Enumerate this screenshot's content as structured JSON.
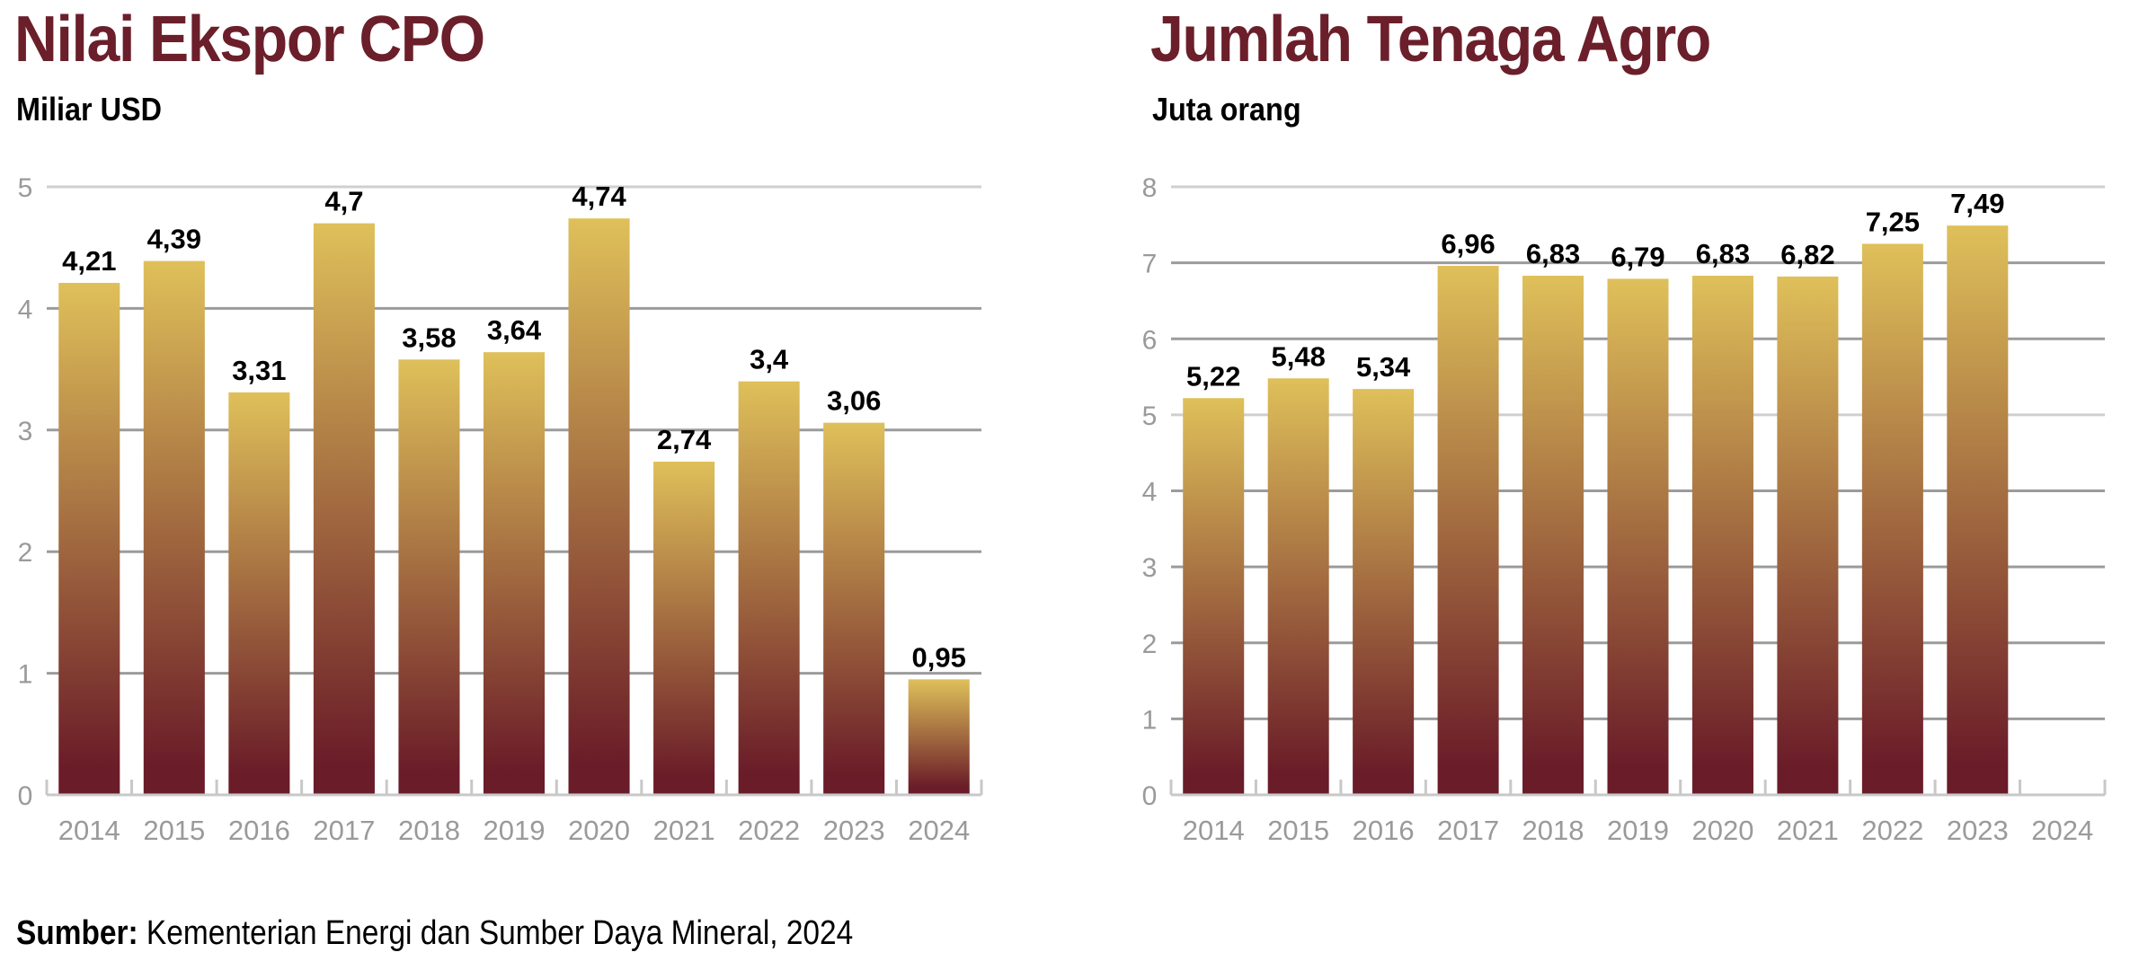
{
  "source": {
    "label": "Sumber:",
    "text": " Kementerian Energi dan Sumber Daya Mineral, 2024"
  },
  "colors": {
    "title": "#6b1f2a",
    "bar_top": "#dfc05a",
    "bar_bottom": "#6a1c28",
    "grid_major": "#9b9b9b",
    "grid_light": "#cfcfcf",
    "axis": "#c8c8c8",
    "tick_text": "#9a9a9a"
  },
  "chart_data": [
    {
      "type": "bar",
      "title": "Nilai Ekspor CPO",
      "subtitle": "Miliar USD",
      "xlabel": "",
      "ylabel": "Miliar USD",
      "categories": [
        "2014",
        "2015",
        "2016",
        "2017",
        "2018",
        "2019",
        "2020",
        "2021",
        "2022",
        "2023",
        "2024"
      ],
      "values": [
        4.21,
        4.39,
        3.31,
        4.7,
        3.58,
        3.64,
        4.74,
        2.74,
        3.4,
        3.06,
        0.95
      ],
      "data_labels": [
        "4,21",
        "4,39",
        "3,31",
        "4,7",
        "3,58",
        "3,64",
        "4,74",
        "2,74",
        "3,4",
        "3,06",
        "0,95"
      ],
      "yticks": [
        0,
        1,
        2,
        3,
        4,
        5
      ],
      "ytick_labels": [
        "0",
        "1",
        "2",
        "3",
        "4",
        "5"
      ],
      "ylim": [
        0,
        5
      ],
      "grid": true
    },
    {
      "type": "bar",
      "title": "Jumlah Tenaga Agro",
      "subtitle": "Juta orang",
      "xlabel": "",
      "ylabel": "Juta orang",
      "categories": [
        "2014",
        "2015",
        "2016",
        "2017",
        "2018",
        "2019",
        "2020",
        "2021",
        "2022",
        "2023",
        "2024"
      ],
      "values": [
        5.22,
        5.48,
        5.34,
        6.96,
        6.83,
        6.79,
        6.83,
        6.82,
        7.25,
        7.49,
        null
      ],
      "data_labels": [
        "5,22",
        "5,48",
        "5,34",
        "6,96",
        "6,83",
        "6,79",
        "6,83",
        "6,82",
        "7,25",
        "7,49",
        ""
      ],
      "yticks": [
        0,
        1,
        2,
        3,
        4,
        5,
        6,
        7,
        8
      ],
      "ytick_labels": [
        "0",
        "1",
        "2",
        "3",
        "4",
        "5",
        "6",
        "7",
        "8"
      ],
      "ylim": [
        0,
        8
      ],
      "grid": true
    }
  ]
}
